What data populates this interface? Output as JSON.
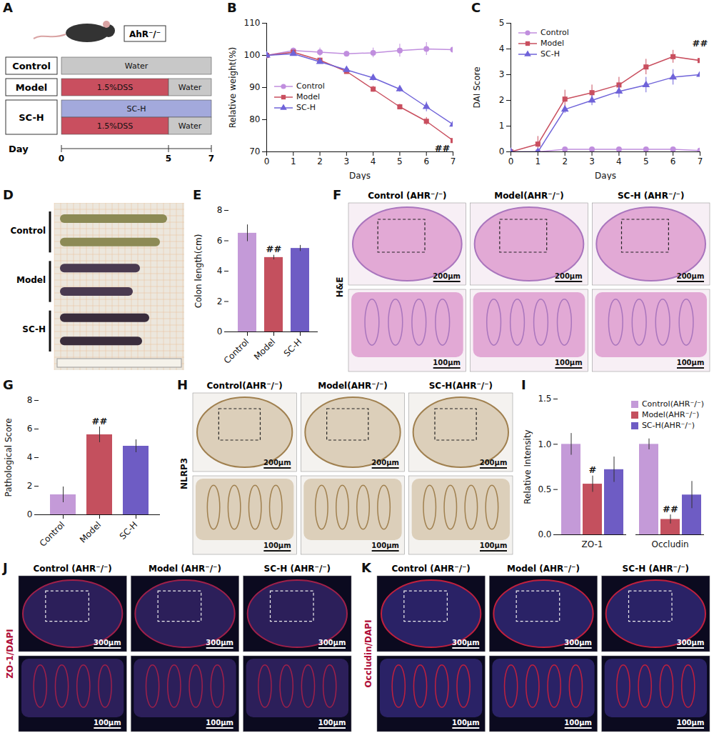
{
  "chart_data": [
    {
      "panel": "B",
      "type": "line",
      "x_label": "Days",
      "y_label": "Relative weight(%)",
      "x": [
        0,
        1,
        2,
        3,
        4,
        5,
        6,
        7
      ],
      "xlim": [
        0,
        7
      ],
      "xticks": [
        0,
        1,
        2,
        3,
        4,
        5,
        6,
        7
      ],
      "ylim": [
        70,
        110
      ],
      "yticks": [
        70,
        80,
        90,
        100,
        110
      ],
      "legend": "left",
      "series": [
        {
          "name": "Control",
          "color": "#c08ede",
          "marker": "circle",
          "values": [
            100,
            101.5,
            101,
            100.5,
            100.8,
            101.5,
            102,
            101.8
          ],
          "errors": [
            0,
            0.8,
            1.3,
            0.8,
            1.5,
            2,
            2,
            2.8
          ]
        },
        {
          "name": "Model",
          "color": "#c94f5f",
          "marker": "square",
          "values": [
            100,
            101,
            98.5,
            95,
            89.5,
            84,
            79.5,
            73.5
          ],
          "errors": [
            0,
            0.4,
            0.6,
            0.6,
            0.9,
            0.8,
            1.2,
            1.5
          ]
        },
        {
          "name": "SC-H",
          "color": "#6f63d9",
          "marker": "triangle",
          "values": [
            100,
            100.5,
            98,
            95.5,
            93,
            89.5,
            84,
            78.5
          ],
          "errors": [
            0,
            0.5,
            0.5,
            0.7,
            0.9,
            0.9,
            1.5,
            1.8
          ]
        }
      ],
      "annotations": [
        {
          "text": "##",
          "x": 6.6,
          "y": 71
        }
      ]
    },
    {
      "panel": "C",
      "type": "line",
      "x_label": "Days",
      "y_label": "DAI Score",
      "x": [
        0,
        1,
        2,
        3,
        4,
        5,
        6,
        7
      ],
      "xlim": [
        0,
        7
      ],
      "xticks": [
        0,
        1,
        2,
        3,
        4,
        5,
        6,
        7
      ],
      "ylim": [
        0,
        5
      ],
      "yticks": [
        0,
        1,
        2,
        3,
        4,
        5
      ],
      "legend": "upper-left",
      "series": [
        {
          "name": "Control",
          "color": "#c08ede",
          "marker": "circle",
          "values": [
            0,
            0,
            0.1,
            0.1,
            0.1,
            0.1,
            0.1,
            0.05
          ],
          "errors": [
            0,
            0.05,
            0.05,
            0.05,
            0.05,
            0.05,
            0.05,
            0.05
          ]
        },
        {
          "name": "Model",
          "color": "#c94f5f",
          "marker": "square",
          "values": [
            0,
            0.3,
            2.05,
            2.3,
            2.6,
            3.3,
            3.7,
            3.55
          ],
          "errors": [
            0,
            0.3,
            0.35,
            0.3,
            0.3,
            0.3,
            0.25,
            0.3
          ]
        },
        {
          "name": "SC-H",
          "color": "#6f63d9",
          "marker": "triangle",
          "values": [
            0,
            0,
            1.65,
            2,
            2.35,
            2.6,
            2.9,
            3
          ],
          "errors": [
            0,
            0.05,
            0.15,
            0.2,
            0.25,
            0.3,
            0.3,
            0.3
          ]
        }
      ],
      "annotations": [
        {
          "text": "##",
          "x": 7,
          "y": 4.2
        }
      ]
    },
    {
      "panel": "E",
      "type": "bar",
      "y_label": "Colon length(cm)",
      "categories": [
        "Control",
        "Model",
        "SC-H"
      ],
      "values": [
        6.5,
        4.9,
        5.5
      ],
      "errors": [
        0.55,
        0.15,
        0.2
      ],
      "colors": [
        "#c49ad8",
        "#c4505e",
        "#6e5cc4"
      ],
      "ylim": [
        0,
        8
      ],
      "yticks": [
        0,
        2,
        4,
        6,
        8
      ],
      "annotations": [
        {
          "category": "Model",
          "text": "##"
        }
      ]
    },
    {
      "panel": "G",
      "type": "bar",
      "y_label": "Pathological Score",
      "categories": [
        "Control",
        "Model",
        "SC-H"
      ],
      "values": [
        1.4,
        5.6,
        4.8
      ],
      "errors": [
        0.55,
        0.55,
        0.45
      ],
      "colors": [
        "#c49ad8",
        "#c4505e",
        "#6e5cc4"
      ],
      "ylim": [
        0,
        8
      ],
      "yticks": [
        0,
        2,
        4,
        6,
        8
      ],
      "annotations": [
        {
          "category": "Model",
          "text": "##"
        }
      ]
    },
    {
      "panel": "I",
      "type": "bar",
      "y_label": "Relative Intensity",
      "categories": [
        "ZO-1",
        "Occludin"
      ],
      "series": [
        {
          "name": "Control(AHR⁻/⁻)",
          "color": "#c49ad8",
          "values": [
            1.0,
            1.0
          ],
          "errors": [
            0.12,
            0.06
          ]
        },
        {
          "name": "Model(AHR⁻/⁻)",
          "color": "#c4505e",
          "values": [
            0.56,
            0.17
          ],
          "errors": [
            0.09,
            0.05
          ]
        },
        {
          "name": "SC-H(AHR⁻/⁻)",
          "color": "#6e5cc4",
          "values": [
            0.72,
            0.44
          ],
          "errors": [
            0.14,
            0.15
          ]
        }
      ],
      "ylim": [
        0,
        1.5
      ],
      "yticks": [
        {
          "value": 0,
          "label": "0.0"
        },
        {
          "value": 0.5,
          "label": "0.5"
        },
        {
          "value": 1,
          "label": "1.0"
        },
        {
          "value": 1.5,
          "label": "1.5"
        }
      ],
      "legend": "upper-right",
      "annotations": [
        {
          "category": "ZO-1",
          "series": "Model(AHR⁻/⁻)",
          "text": "#"
        },
        {
          "category": "Occludin",
          "series": "Model(AHR⁻/⁻)",
          "text": "##"
        }
      ]
    }
  ],
  "schematic": {
    "panel": "A",
    "title": "AhR⁻/⁻",
    "axis_label": "Day",
    "xlim": [
      0,
      7
    ],
    "xticks": [
      0,
      5,
      7
    ],
    "rows": [
      {
        "label": "Control",
        "bars": [
          [
            {
              "text": "Water",
              "start": 0,
              "end": 7,
              "color": "#c8c8c8"
            }
          ]
        ]
      },
      {
        "label": "Model",
        "bars": [
          [
            {
              "text": "1.5%DSS",
              "start": 0,
              "end": 5,
              "color": "#c94f5f"
            },
            {
              "text": "Water",
              "start": 5,
              "end": 7,
              "color": "#c8c8c8"
            }
          ]
        ]
      },
      {
        "label": "SC-H",
        "bars": [
          [
            {
              "text": "SC-H",
              "start": 0,
              "end": 7,
              "color": "#a3a9dc"
            }
          ],
          [
            {
              "text": "1.5%DSS",
              "start": 0,
              "end": 5,
              "color": "#c94f5f"
            },
            {
              "text": "Water",
              "start": 5,
              "end": 7,
              "color": "#c8c8c8"
            }
          ]
        ]
      }
    ]
  },
  "photo": {
    "panel": "D",
    "row_labels": [
      "Control",
      "Model",
      "SC-H"
    ]
  },
  "images": [
    {
      "panel": "F",
      "side_label": "H&E",
      "columns": [
        "Control (AHR⁻/⁻)",
        "Model(AHR⁻/⁻)",
        "SC-H (AHR⁻/⁻)"
      ],
      "scale_bars": [
        "200μm",
        "100μm"
      ]
    },
    {
      "panel": "H",
      "side_label": "NLRP3",
      "columns": [
        "Control(AHR⁻/⁻)",
        "Model(AHR⁻/⁻)",
        "SC-H(AHR⁻/⁻)"
      ],
      "scale_bars": [
        "200μm",
        "100μm"
      ]
    },
    {
      "panel": "J",
      "side_label": "ZO-1/DAPI",
      "columns": [
        "Control (AHR⁻/⁻)",
        "Model (AHR⁻/⁻)",
        "SC-H (AHR⁻/⁻)"
      ],
      "scale_bars": [
        "300μm",
        "100μm"
      ]
    },
    {
      "panel": "K",
      "side_label": "Occludin/DAPI",
      "columns": [
        "Control (AHR⁻/⁻)",
        "Model (AHR⁻/⁻)",
        "SC-H (AHR⁻/⁻)"
      ],
      "scale_bars": [
        "300μm",
        "100μm"
      ]
    }
  ]
}
